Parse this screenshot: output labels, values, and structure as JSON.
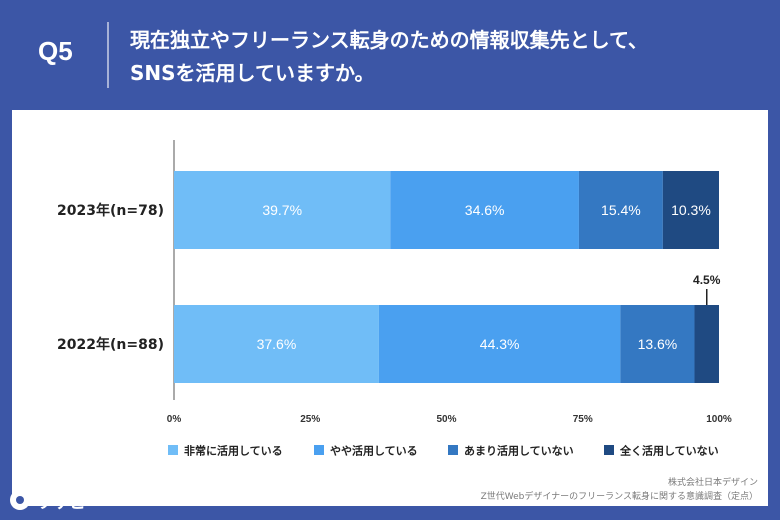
{
  "header": {
    "question_number": "Q5",
    "title_line1": "現在独立やフリーランス転身のための情報収集先として、",
    "title_line2": "SNSを活用していますか。"
  },
  "footer": {
    "source_company": "株式会社日本デザイン",
    "source_survey": "Z世代Webデザイナーのフリーランス転身に関する意識調査（定点）"
  },
  "logo": {
    "text": "リサピー"
  },
  "colors": {
    "background": "#3c56a6",
    "series": [
      "#70bdf7",
      "#4aa0f0",
      "#3478c2",
      "#1f4a82"
    ]
  },
  "chart_data": {
    "type": "bar",
    "orientation": "horizontal",
    "stacked": true,
    "categories": [
      "2023年(n=78)",
      "2022年(n=88)"
    ],
    "series": [
      {
        "name": "非常に活用している",
        "values": [
          39.7,
          37.6
        ],
        "labels": [
          "39.7%",
          "37.6%"
        ]
      },
      {
        "name": "やや活用している",
        "values": [
          34.6,
          44.3
        ],
        "labels": [
          "34.6%",
          "44.3%"
        ]
      },
      {
        "name": "あまり活用していない",
        "values": [
          15.4,
          13.6
        ],
        "labels": [
          "15.4%",
          "13.6%"
        ]
      },
      {
        "name": "全く活用していない",
        "values": [
          10.3,
          4.5
        ],
        "labels": [
          "10.3%",
          "4.5%"
        ]
      }
    ],
    "x_ticks": [
      "0%",
      "25%",
      "50%",
      "75%",
      "100%"
    ],
    "xlim": [
      0,
      100
    ],
    "legend_position": "bottom",
    "grid": false
  }
}
